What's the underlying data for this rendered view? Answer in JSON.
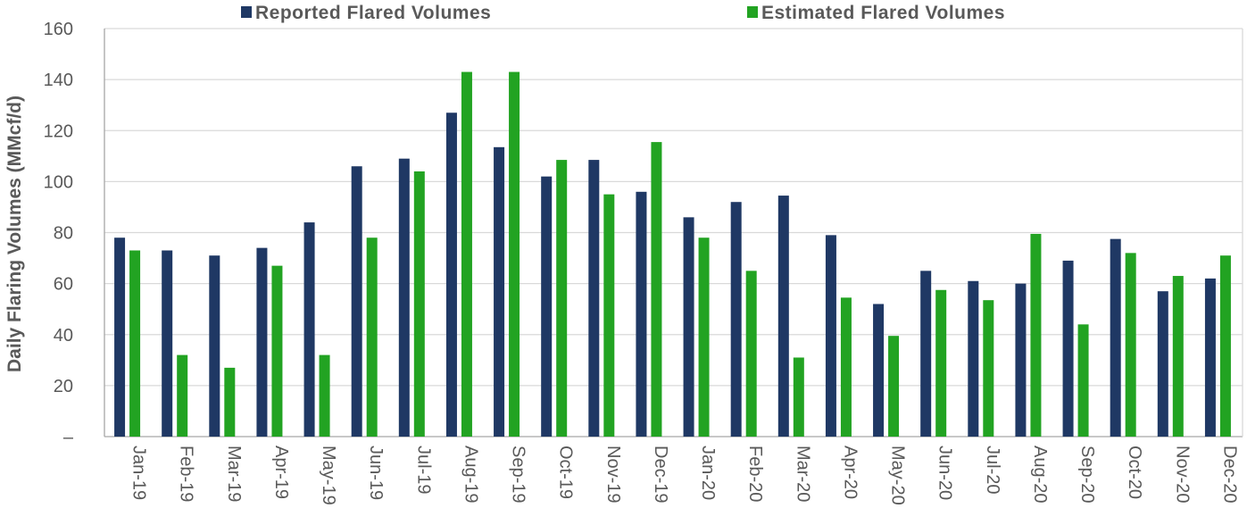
{
  "chart_data": {
    "type": "bar",
    "title": "",
    "xlabel": "",
    "ylabel": "Daily Flaring Volumes (MMcf/d)",
    "ylim": [
      0,
      160
    ],
    "yticks": [
      0,
      20,
      40,
      60,
      80,
      100,
      120,
      140,
      160
    ],
    "ytick_labels": [
      "–",
      "20",
      "40",
      "60",
      "80",
      "100",
      "120",
      "140",
      "160"
    ],
    "grid": true,
    "legend_position": "top",
    "categories": [
      "Jan-19",
      "Feb-19",
      "Mar-19",
      "Apr-19",
      "May-19",
      "Jun-19",
      "Jul-19",
      "Aug-19",
      "Sep-19",
      "Oct-19",
      "Nov-19",
      "Dec-19",
      "Jan-20",
      "Feb-20",
      "Mar-20",
      "Apr-20",
      "May-20",
      "Jun-20",
      "Jul-20",
      "Aug-20",
      "Sep-20",
      "Oct-20",
      "Nov-20",
      "Dec-20"
    ],
    "series": [
      {
        "name": "Reported Flared Volumes",
        "color": "#1f3864",
        "values": [
          78,
          73,
          71,
          74,
          84,
          106,
          109,
          127,
          113.5,
          102,
          108.5,
          96,
          86,
          92,
          94.5,
          79,
          52,
          65,
          61,
          60,
          69,
          77.5,
          57,
          62
        ]
      },
      {
        "name": "Estimated Flared Volumes",
        "color": "#22a322",
        "values": [
          73,
          32,
          27,
          67,
          32,
          78,
          104,
          143,
          143,
          108.5,
          95,
          115.5,
          78,
          65,
          31,
          54.5,
          39.5,
          57.5,
          53.5,
          79.5,
          44,
          72,
          63,
          71
        ]
      }
    ]
  }
}
